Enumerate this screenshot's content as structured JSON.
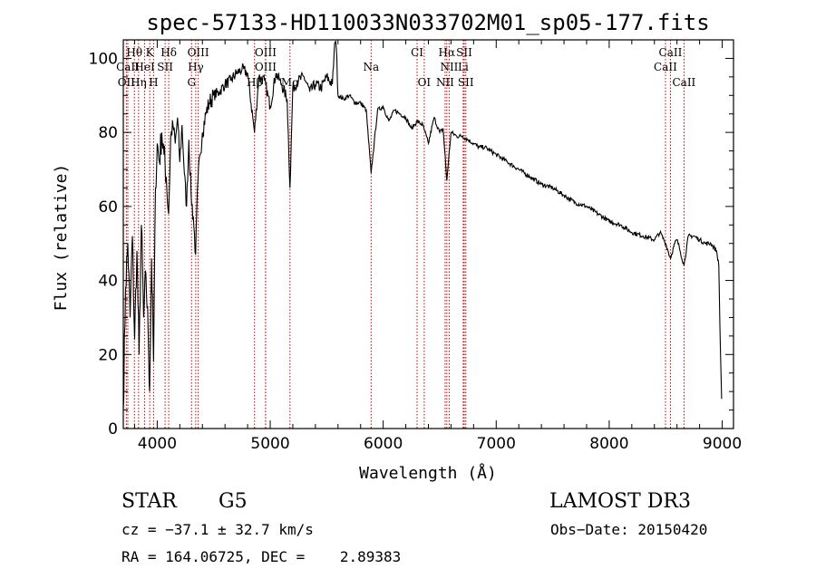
{
  "chart_data": {
    "type": "line",
    "title": "spec-57133-HD110033N033702M01_sp05-177.fits",
    "xlabel": "Wavelength (Å)",
    "ylabel": "Flux (relative)",
    "xlim": [
      3700,
      9100
    ],
    "ylim": [
      0,
      105
    ],
    "xticks": [
      "4000",
      "5000",
      "6000",
      "7000",
      "8000",
      "9000"
    ],
    "yticks": [
      "0",
      "20",
      "40",
      "60",
      "80",
      "100"
    ],
    "series": [
      {
        "name": "spectrum",
        "x": [
          3700,
          3720,
          3740,
          3760,
          3780,
          3800,
          3820,
          3840,
          3860,
          3880,
          3900,
          3920,
          3933,
          3950,
          3968,
          3985,
          4000,
          4020,
          4040,
          4060,
          4080,
          4101,
          4120,
          4140,
          4160,
          4180,
          4200,
          4220,
          4240,
          4260,
          4280,
          4300,
          4320,
          4340,
          4360,
          4380,
          4400,
          4430,
          4460,
          4500,
          4550,
          4600,
          4650,
          4700,
          4750,
          4800,
          4861,
          4900,
          4950,
          5000,
          5050,
          5100,
          5150,
          5175,
          5200,
          5250,
          5300,
          5350,
          5400,
          5450,
          5500,
          5550,
          5580,
          5600,
          5650,
          5700,
          5750,
          5800,
          5850,
          5893,
          5950,
          6000,
          6050,
          6100,
          6150,
          6200,
          6250,
          6300,
          6350,
          6400,
          6450,
          6500,
          6530,
          6563,
          6600,
          6650,
          6700,
          6750,
          6800,
          6850,
          6900,
          7000,
          7100,
          7200,
          7300,
          7400,
          7500,
          7600,
          7700,
          7800,
          7900,
          8000,
          8100,
          8200,
          8300,
          8400,
          8450,
          8500,
          8542,
          8580,
          8600,
          8620,
          8662,
          8700,
          8750,
          8800,
          8850,
          8900,
          8950,
          8970,
          8985,
          8995
        ],
        "values": [
          5,
          38,
          50,
          30,
          52,
          24,
          48,
          20,
          55,
          30,
          42,
          26,
          10,
          46,
          18,
          65,
          77,
          72,
          80,
          74,
          68,
          58,
          79,
          82,
          77,
          84,
          72,
          82,
          69,
          60,
          78,
          63,
          57,
          47,
          67,
          74,
          80,
          85,
          88,
          90,
          91,
          93,
          94,
          96,
          97,
          96,
          80,
          95,
          94,
          87,
          96,
          93,
          89,
          65,
          92,
          94,
          95,
          91,
          93,
          92,
          95,
          93,
          108,
          90,
          89,
          90,
          88,
          88,
          86,
          69,
          86,
          87,
          83,
          86,
          85,
          84,
          81,
          83,
          82,
          77,
          84,
          80,
          81,
          67,
          80,
          79,
          79,
          78,
          77,
          76,
          76,
          74,
          72,
          70,
          68,
          66,
          65,
          63,
          61,
          60,
          58,
          56,
          55,
          53,
          52,
          51,
          53,
          50,
          46,
          50,
          51,
          49,
          44,
          52,
          52,
          51,
          50,
          50,
          48,
          44,
          20,
          8
        ]
      }
    ],
    "spectral_lines": [
      {
        "label": "Hθ",
        "wavelength": 3798,
        "row": 1
      },
      {
        "label": "K",
        "wavelength": 3934,
        "row": 1
      },
      {
        "label": "Hδ",
        "wavelength": 4102,
        "row": 1
      },
      {
        "label": "OIII",
        "wavelength": 4363,
        "row": 1
      },
      {
        "label": "OIII",
        "wavelength": 4959,
        "row": 1
      },
      {
        "label": "CI",
        "wavelength": 6300,
        "row": 1
      },
      {
        "label": "Hα",
        "wavelength": 6563,
        "row": 1
      },
      {
        "label": "SII",
        "wavelength": 6717,
        "row": 1
      },
      {
        "label": "CaII",
        "wavelength": 8542,
        "row": 1
      },
      {
        "label": "CaII",
        "wavelength": 3740,
        "row": 2
      },
      {
        "label": "HeI",
        "wavelength": 3889,
        "row": 2
      },
      {
        "label": "SII",
        "wavelength": 4070,
        "row": 2
      },
      {
        "label": "Hγ",
        "wavelength": 4341,
        "row": 2
      },
      {
        "label": "OIII",
        "wavelength": 4959,
        "row": 2
      },
      {
        "label": "Na",
        "wavelength": 5893,
        "row": 2
      },
      {
        "label": "NII",
        "wavelength": 6584,
        "row": 2
      },
      {
        "label": "Li",
        "wavelength": 6708,
        "row": 2
      },
      {
        "label": "CaII",
        "wavelength": 8498,
        "row": 2
      },
      {
        "label": "OII",
        "wavelength": 3727,
        "row": 3
      },
      {
        "label": "Hη",
        "wavelength": 3835,
        "row": 3
      },
      {
        "label": "H",
        "wavelength": 3968,
        "row": 3
      },
      {
        "label": "G",
        "wavelength": 4304,
        "row": 3
      },
      {
        "label": "Hβ",
        "wavelength": 4861,
        "row": 3
      },
      {
        "label": "Mg",
        "wavelength": 5175,
        "row": 3
      },
      {
        "label": "OI",
        "wavelength": 6363,
        "row": 3
      },
      {
        "label": "NII",
        "wavelength": 6548,
        "row": 3
      },
      {
        "label": "SII",
        "wavelength": 6731,
        "row": 3
      },
      {
        "label": "CaII",
        "wavelength": 8662,
        "row": 3
      }
    ],
    "line_color": "#cc0000"
  },
  "info": {
    "object_class": "STAR",
    "subclass": "G5",
    "survey": "LAMOST DR3",
    "redshift": "cz = −37.1 ± 32.7 km/s",
    "obs_date": "Obs−Date: 20150420",
    "coords": "RA = 164.06725, DEC =    2.89383"
  }
}
